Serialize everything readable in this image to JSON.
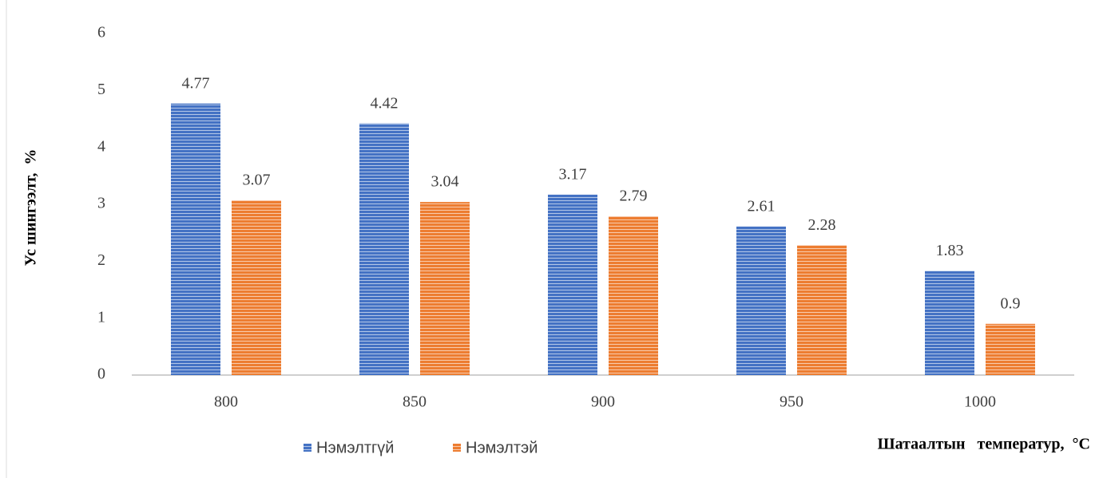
{
  "chart_data": {
    "type": "bar",
    "x_label": "Шатаалтын   температур,  °C",
    "y_label": "Ус шингээлт,  %",
    "categories": [
      "800",
      "850",
      "900",
      "950",
      "1000"
    ],
    "series": [
      {
        "name": "Нэмэлтгүй",
        "color": "#4472c4",
        "values": [
          4.77,
          4.42,
          3.17,
          2.61,
          1.83
        ]
      },
      {
        "name": "Нэмэлтэй",
        "color": "#ed7d31",
        "values": [
          3.07,
          3.04,
          2.79,
          2.28,
          0.9
        ]
      }
    ],
    "ylim": [
      0,
      6
    ],
    "yticks": [
      0,
      1,
      2,
      3,
      4,
      5,
      6
    ],
    "grid": false
  }
}
